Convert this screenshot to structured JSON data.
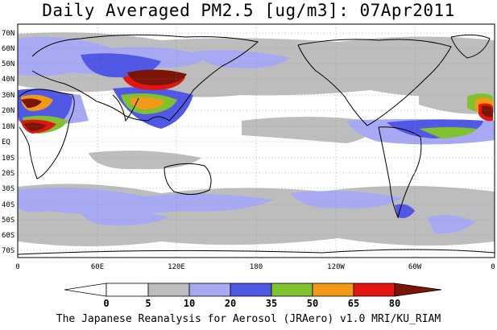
{
  "title": "Daily Averaged PM2.5 [ug/m3]: 07Apr2011",
  "footer": "The Japanese Reanalysis for Aerosol (JRAero) v1.0 MRI/KU_RIAM",
  "map": {
    "lat_range": [
      -75,
      75
    ],
    "lon_range_degE": [
      0,
      360
    ],
    "lat_ticks": [
      "70N",
      "60N",
      "50N",
      "40N",
      "30N",
      "20N",
      "10N",
      "EQ",
      "10S",
      "20S",
      "30S",
      "40S",
      "50S",
      "60S",
      "70S"
    ],
    "lon_ticks": [
      "0",
      "60E",
      "120E",
      "180",
      "120W",
      "60W",
      "0"
    ]
  },
  "colorbar": {
    "levels": [
      "0",
      "5",
      "10",
      "20",
      "35",
      "50",
      "65",
      "80"
    ],
    "colors": [
      "#ffffff",
      "#bdbdbd",
      "#a7a9f3",
      "#5158e6",
      "#7fc12e",
      "#f29a18",
      "#e3160f",
      "#7a1508"
    ]
  }
}
